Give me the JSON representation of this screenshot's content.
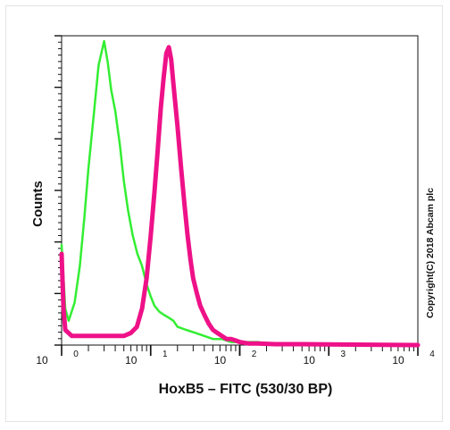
{
  "chart_data": {
    "type": "line",
    "title": "",
    "xlabel": "HoxB5 – FITC (530/30 BP)",
    "ylabel": "Counts",
    "x_scale": "log",
    "xlim": [
      1,
      10000
    ],
    "ylim": [
      0,
      100
    ],
    "x_ticks": [
      {
        "base": "10",
        "exp": "0",
        "value": 1
      },
      {
        "base": "10",
        "exp": "1",
        "value": 10
      },
      {
        "base": "10",
        "exp": "2",
        "value": 100
      },
      {
        "base": "10",
        "exp": "3",
        "value": 1000
      },
      {
        "base": "10",
        "exp": "4",
        "value": 10000
      }
    ],
    "grid": false,
    "legend": "none",
    "series": [
      {
        "color": "#33ee33",
        "x": [
          1,
          1.1,
          1.2,
          1.4,
          1.6,
          1.8,
          2.0,
          2.3,
          2.6,
          3.0,
          3.3,
          3.6,
          4.0,
          4.5,
          5.0,
          5.6,
          6.3,
          7.1,
          8.0,
          9.0,
          10,
          11,
          12.5,
          14,
          16,
          18,
          20,
          25,
          32,
          40,
          50,
          63,
          80,
          100,
          126,
          160,
          200,
          300,
          500,
          800,
          1500,
          3000,
          10000
        ],
        "y": [
          33,
          12,
          8,
          14,
          26,
          42,
          58,
          76,
          92,
          100,
          93,
          84,
          77,
          66,
          54,
          44,
          36,
          30,
          26,
          20,
          16,
          13,
          11,
          10,
          9,
          8,
          6,
          5,
          4,
          3,
          2,
          2,
          1,
          1,
          1,
          1,
          0.5,
          0.5,
          0.5,
          0.3,
          0.3,
          0.3,
          0
        ]
      },
      {
        "color": "#ee1188",
        "x": [
          1,
          1.05,
          1.1,
          1.3,
          1.6,
          2,
          3,
          4,
          5,
          6,
          7,
          8,
          9,
          10,
          11,
          12,
          13,
          14,
          15,
          16,
          17,
          18,
          20,
          22,
          24,
          26,
          28,
          30,
          33,
          36,
          40,
          45,
          50,
          56,
          63,
          71,
          80,
          90,
          100,
          126,
          160,
          250,
          500,
          10000
        ],
        "y": [
          30,
          12,
          5,
          3,
          3,
          3,
          3,
          3,
          3,
          4,
          6,
          12,
          22,
          36,
          50,
          64,
          78,
          88,
          96,
          98,
          94,
          86,
          72,
          58,
          46,
          36,
          28,
          22,
          17,
          13,
          10,
          7,
          5,
          4,
          3,
          2,
          2,
          1.5,
          1,
          0.5,
          0.5,
          0.3,
          0.3,
          0
        ]
      }
    ],
    "annotations": [
      "Copyright(C) 2018 Abcam plc"
    ]
  }
}
